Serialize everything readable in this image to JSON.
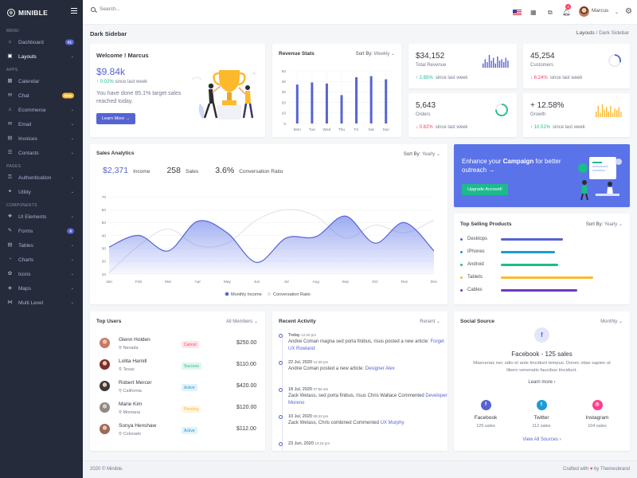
{
  "brand": {
    "name": "MINIBLE"
  },
  "sidebar": {
    "sections": [
      {
        "title": "MENU",
        "items": [
          {
            "label": "Dashboard",
            "icon": "home-icon",
            "badge": "01",
            "badge_color": "#5664d2"
          },
          {
            "label": "Layouts",
            "icon": "layout-icon",
            "active": true,
            "chevron": true
          }
        ]
      },
      {
        "title": "APPS",
        "items": [
          {
            "label": "Calendar",
            "icon": "calendar-icon"
          },
          {
            "label": "Chat",
            "icon": "chat-icon",
            "badge": "New",
            "badge_color": "#fcb92c"
          },
          {
            "label": "Ecommerce",
            "icon": "store-icon",
            "chevron": true
          },
          {
            "label": "Email",
            "icon": "email-icon",
            "chevron": true
          },
          {
            "label": "Invoices",
            "icon": "invoice-icon",
            "chevron": true
          },
          {
            "label": "Contacts",
            "icon": "contacts-icon",
            "chevron": true
          }
        ]
      },
      {
        "title": "PAGES",
        "items": [
          {
            "label": "Authentication",
            "icon": "lock-icon",
            "chevron": true
          },
          {
            "label": "Utility",
            "icon": "utility-icon",
            "chevron": true
          }
        ]
      },
      {
        "title": "COMPONENTS",
        "items": [
          {
            "label": "UI Elements",
            "icon": "ui-elements-icon",
            "chevron": true
          },
          {
            "label": "Forms",
            "icon": "forms-icon",
            "badge": "6",
            "badge_color": "#5664d2"
          },
          {
            "label": "Tables",
            "icon": "table-icon",
            "chevron": true
          },
          {
            "label": "Charts",
            "icon": "chart-icon",
            "chevron": true
          },
          {
            "label": "Icons",
            "icon": "icons-icon",
            "chevron": true
          },
          {
            "label": "Maps",
            "icon": "map-icon",
            "chevron": true
          },
          {
            "label": "Multi Level",
            "icon": "share-icon",
            "chevron": true
          }
        ]
      }
    ]
  },
  "topbar": {
    "search_placeholder": "Search...",
    "notification_count": "3",
    "user_name": "Marcus"
  },
  "page": {
    "title": "Dark Sidebar",
    "breadcrumb": [
      "Layouts",
      "Dark Sidebar"
    ]
  },
  "welcome": {
    "title": "Welcome ! Marcus",
    "amount": "$9.84k",
    "change": "0.02%",
    "change_label": "since last week",
    "message": "You have done 85.1% target sales reached today.",
    "button": "Learn More"
  },
  "revenue_stats": {
    "title": "Revenue Stats",
    "sort_label": "Sort By:",
    "sort_value": "Weekly"
  },
  "mini_stats": [
    {
      "value": "$34,152",
      "label": "Total Revenue",
      "change": "2.65%",
      "direction": "up",
      "since": "since last week",
      "chart": "bars",
      "color": "#5664d2",
      "bars": [
        3,
        6,
        4,
        9,
        5,
        7,
        3,
        8,
        5,
        6,
        4,
        7,
        5
      ]
    },
    {
      "value": "45,254",
      "label": "Customers",
      "change": "6.24%",
      "direction": "down",
      "since": "since last week",
      "chart": "ring",
      "color": "#5664d2",
      "ring_fraction": 0.3
    },
    {
      "value": "5,643",
      "label": "Orders",
      "change": "0.82%",
      "direction": "down",
      "since": "since last week",
      "chart": "ring",
      "color": "#1cbb8c",
      "ring_fraction": 0.75
    },
    {
      "value": "+ 12.58%",
      "label": "Growth",
      "change": "10.51%",
      "direction": "up",
      "since": "since last week",
      "chart": "bars",
      "color": "#fcb92c",
      "bars": [
        4,
        8,
        3,
        9,
        5,
        7,
        4,
        8,
        3,
        6,
        5,
        7,
        4
      ]
    }
  ],
  "sales_analytics": {
    "title": "Sales Analytics",
    "sort_label": "Sort By:",
    "sort_value": "Yearly",
    "income_value": "$2,371",
    "income_label": "Income",
    "sales_value": "258",
    "sales_label": "Sales",
    "ratio_value": "3.6%",
    "ratio_label": "Conversation Ratio"
  },
  "campaign": {
    "text_before": "Enhance your ",
    "text_bold": "Campaign",
    "text_after": " for better outreach",
    "button": "Upgrade Account!"
  },
  "top_products": {
    "title": "Top Selling Products",
    "sort_label": "Sort By:",
    "sort_value": "Yearly",
    "items": [
      {
        "name": "Desktops",
        "fraction": 0.52,
        "color": "#5664d2"
      },
      {
        "name": "iPhones",
        "fraction": 0.45,
        "color": "#1c9bd7"
      },
      {
        "name": "Android",
        "fraction": 0.48,
        "color": "#1cbb8c"
      },
      {
        "name": "Tablets",
        "fraction": 0.77,
        "color": "#fcb92c"
      },
      {
        "name": "Cables",
        "fraction": 0.64,
        "color": "#7039c2"
      }
    ]
  },
  "top_users": {
    "title": "Top Users",
    "filter": "All Members",
    "items": [
      {
        "name": "Glenn Holden",
        "location": "Nevada",
        "status": "Cancel",
        "status_color": "#ff3d60",
        "amount": "$250.00"
      },
      {
        "name": "Lolita Hamill",
        "location": "Texas",
        "status": "Success",
        "status_color": "#1cbb8c",
        "amount": "$110.00"
      },
      {
        "name": "Robert Mercer",
        "location": "California",
        "status": "Active",
        "status_color": "#1c9bd7",
        "amount": "$420.00"
      },
      {
        "name": "Marie Kim",
        "location": "Montana",
        "status": "Pending",
        "status_color": "#fcb92c",
        "amount": "$120.00"
      },
      {
        "name": "Sonya Henshaw",
        "location": "Colorado",
        "status": "Active",
        "status_color": "#1c9bd7",
        "amount": "$112.00"
      }
    ]
  },
  "recent_activity": {
    "title": "Recent Activity",
    "filter": "Recent",
    "items": [
      {
        "date": "Today",
        "time": "12:20 pm",
        "text": "Andrei Coman magna sed porta finibus, risus posted a new article:",
        "link": "Forget UX Rowland"
      },
      {
        "date": "22 Jul, 2020",
        "time": "12:36 pm",
        "text": "Andrei Coman posted a new article:",
        "link": "Designer Alex"
      },
      {
        "date": "18 Jul, 2020",
        "time": "07:56 am",
        "text": "Zack Wetass, sed porta finibus, risus Chris Wallace Commented",
        "link": "Developer Moreno"
      },
      {
        "date": "10 Jul, 2020",
        "time": "08:42 pm",
        "text": "Zack Wetass, Chris combined Commented",
        "link": "UX Murphy"
      },
      {
        "date": "23 Jun, 2020",
        "time": "12:22 pm",
        "text": "",
        "link": ""
      }
    ]
  },
  "social": {
    "title": "Social Source",
    "filter": "Monthly",
    "headline": "Facebook - 125 sales",
    "desc": "Maecenas nec odio et ante tincidunt tempus. Donec vitae sapien ut libero venenatis faucibus tincidunt.",
    "learn_more": "Learn more",
    "items": [
      {
        "name": "Facebook",
        "sales": "125 sales",
        "color": "#5664d2",
        "icon": "f"
      },
      {
        "name": "Twitter",
        "sales": "112 sales",
        "color": "#1c9bd7",
        "icon": "t"
      },
      {
        "name": "Instagram",
        "sales": "104 sales",
        "color": "#ff3d8b",
        "icon": "◎"
      }
    ],
    "view_all": "View All Sources"
  },
  "footer": {
    "left": "2020 © Minible.",
    "right_before": "Crafted with ",
    "right_after": " by Themesbrand"
  },
  "chart_data": [
    {
      "type": "bar",
      "categories": [
        "Mon",
        "Tue",
        "Wed",
        "Thu",
        "Fri",
        "Sat",
        "Sun"
      ],
      "values": [
        37,
        39,
        38,
        27,
        44,
        45,
        42
      ],
      "ylim": [
        0,
        50
      ],
      "yticks": [
        0,
        10,
        20,
        30,
        40,
        50
      ],
      "grid": true,
      "color": "#5664d2"
    },
    {
      "type": "area",
      "categories": [
        "Jan",
        "Feb",
        "Mar",
        "Apr",
        "May",
        "Jun",
        "Jul",
        "Aug",
        "Sep",
        "Oct",
        "Nov",
        "Dec"
      ],
      "series": [
        {
          "name": "Monthly Income",
          "type": "area",
          "color": "#5664d2",
          "values": [
            31,
            40,
            28,
            51,
            42,
            19,
            38,
            39,
            55,
            34,
            50,
            28
          ]
        },
        {
          "name": "Conversation Ratio",
          "type": "line",
          "color": "#e6e8ef",
          "values": [
            11,
            32,
            45,
            32,
            34,
            52,
            60,
            55,
            38,
            48,
            42,
            52
          ]
        }
      ],
      "ylim": [
        10,
        70
      ],
      "yticks": [
        10,
        20,
        30,
        40,
        50,
        60,
        70
      ],
      "legend": "bottom",
      "grid": true
    }
  ]
}
